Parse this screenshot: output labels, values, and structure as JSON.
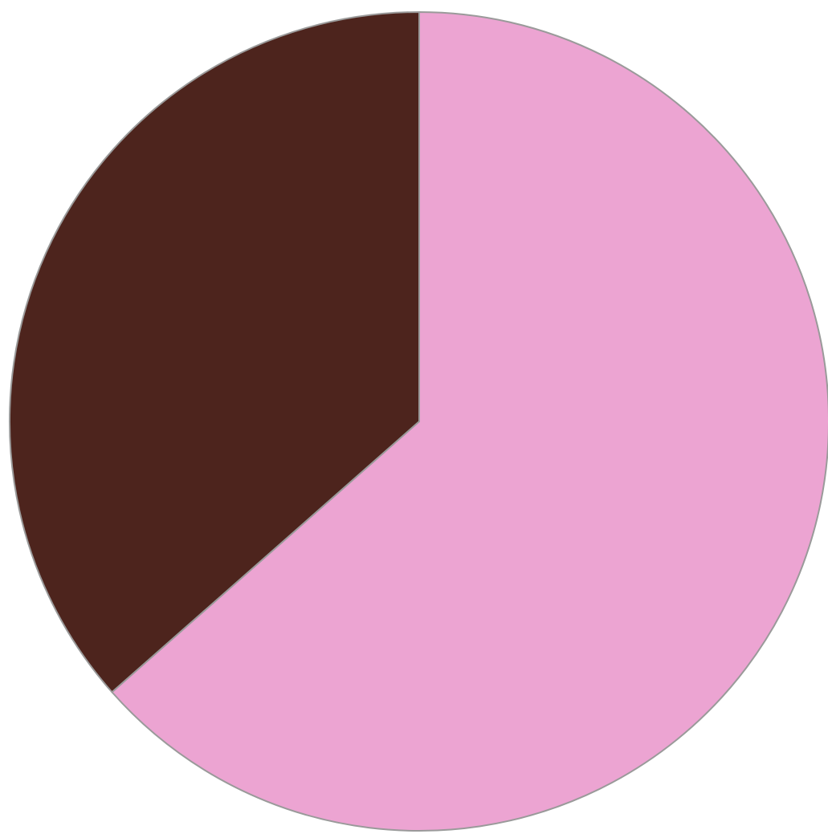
{
  "chart_data": {
    "type": "pie",
    "title": "",
    "legend": "none",
    "start_angle_deg": 0,
    "direction": "clockwise",
    "slices": [
      {
        "value": 63.5,
        "color": "#eca4d2"
      },
      {
        "value": 36.5,
        "color": "#4d241d"
      }
    ]
  }
}
